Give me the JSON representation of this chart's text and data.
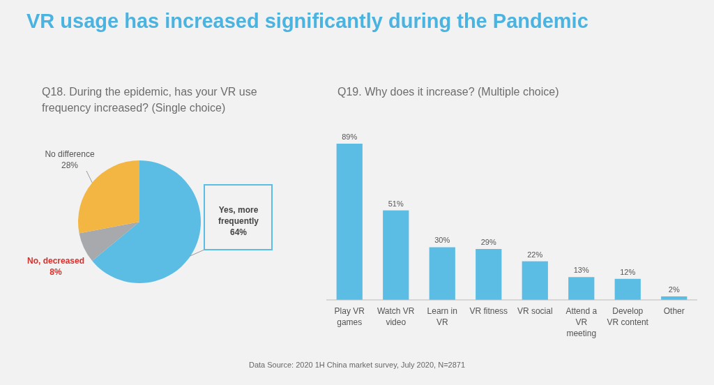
{
  "chart_data": [
    {
      "type": "pie",
      "title": "VR usage has increased significantly during the Pandemic",
      "subtitle": "Q18. During the epidemic, has your VR use frequency increased? (Single choice)",
      "categories": [
        "Yes, more frequently",
        "No, decreased",
        "No difference"
      ],
      "values": [
        64,
        8,
        28
      ],
      "value_labels": [
        "64%",
        "8%",
        "28%"
      ],
      "colors": [
        "#5bbde4",
        "#a7a9ac",
        "#f4b642"
      ]
    },
    {
      "type": "bar",
      "title": "Q19. Why does it increase? (Multiple choice)",
      "categories": [
        "Play VR games",
        "Watch VR video",
        "Learn in VR",
        "VR fitness",
        "VR social",
        "Attend a VR meeting",
        "Develop VR content",
        "Other"
      ],
      "values": [
        89,
        51,
        30,
        29,
        22,
        13,
        12,
        2
      ],
      "value_labels": [
        "89%",
        "51%",
        "30%",
        "29%",
        "22%",
        "13%",
        "12%",
        "2%"
      ],
      "color": "#5bbde4",
      "annotations": [
        "Data Source: 2020 1H China market survey, July 2020, N=2871"
      ]
    }
  ]
}
